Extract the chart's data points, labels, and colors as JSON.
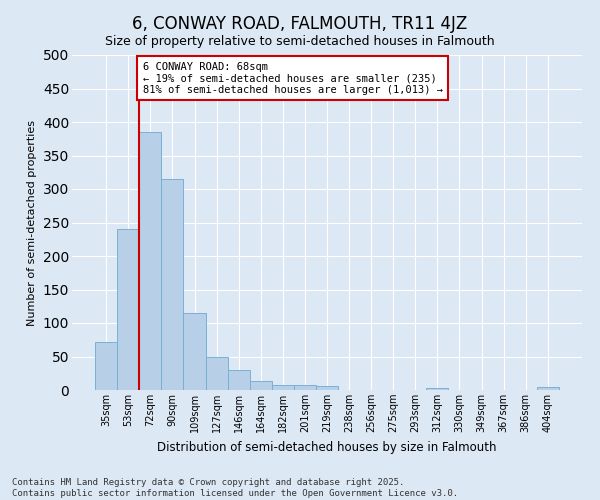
{
  "title": "6, CONWAY ROAD, FALMOUTH, TR11 4JZ",
  "subtitle": "Size of property relative to semi-detached houses in Falmouth",
  "xlabel": "Distribution of semi-detached houses by size in Falmouth",
  "ylabel": "Number of semi-detached properties",
  "categories": [
    "35sqm",
    "53sqm",
    "72sqm",
    "90sqm",
    "109sqm",
    "127sqm",
    "146sqm",
    "164sqm",
    "182sqm",
    "201sqm",
    "219sqm",
    "238sqm",
    "256sqm",
    "275sqm",
    "293sqm",
    "312sqm",
    "330sqm",
    "349sqm",
    "367sqm",
    "386sqm",
    "404sqm"
  ],
  "values": [
    72,
    240,
    385,
    315,
    115,
    50,
    30,
    14,
    7,
    7,
    6,
    0,
    0,
    0,
    0,
    3,
    0,
    0,
    0,
    0,
    5
  ],
  "bar_color": "#b8cfe8",
  "bar_edge_color": "#7aafd4",
  "red_line_x": 1.5,
  "annotation_line1": "6 CONWAY ROAD: 68sqm",
  "annotation_line2": "← 19% of semi-detached houses are smaller (235)",
  "annotation_line3": "81% of semi-detached houses are larger (1,013) →",
  "footer": "Contains HM Land Registry data © Crown copyright and database right 2025.\nContains public sector information licensed under the Open Government Licence v3.0.",
  "ylim": [
    0,
    500
  ],
  "yticks": [
    0,
    50,
    100,
    150,
    200,
    250,
    300,
    350,
    400,
    450,
    500
  ],
  "bg_color": "#dde8f5",
  "plot_bg_color": "#dde8f5",
  "grid_color": "#ffffff",
  "title_fontsize": 12,
  "subtitle_fontsize": 9,
  "footer_fontsize": 6.5,
  "annotation_box_facecolor": "#ffffff",
  "annotation_box_edgecolor": "#cc0000",
  "red_line_color": "#cc0000",
  "ylabel_fontsize": 8,
  "xlabel_fontsize": 8.5,
  "tick_fontsize": 7,
  "annotation_fontsize": 7.5
}
